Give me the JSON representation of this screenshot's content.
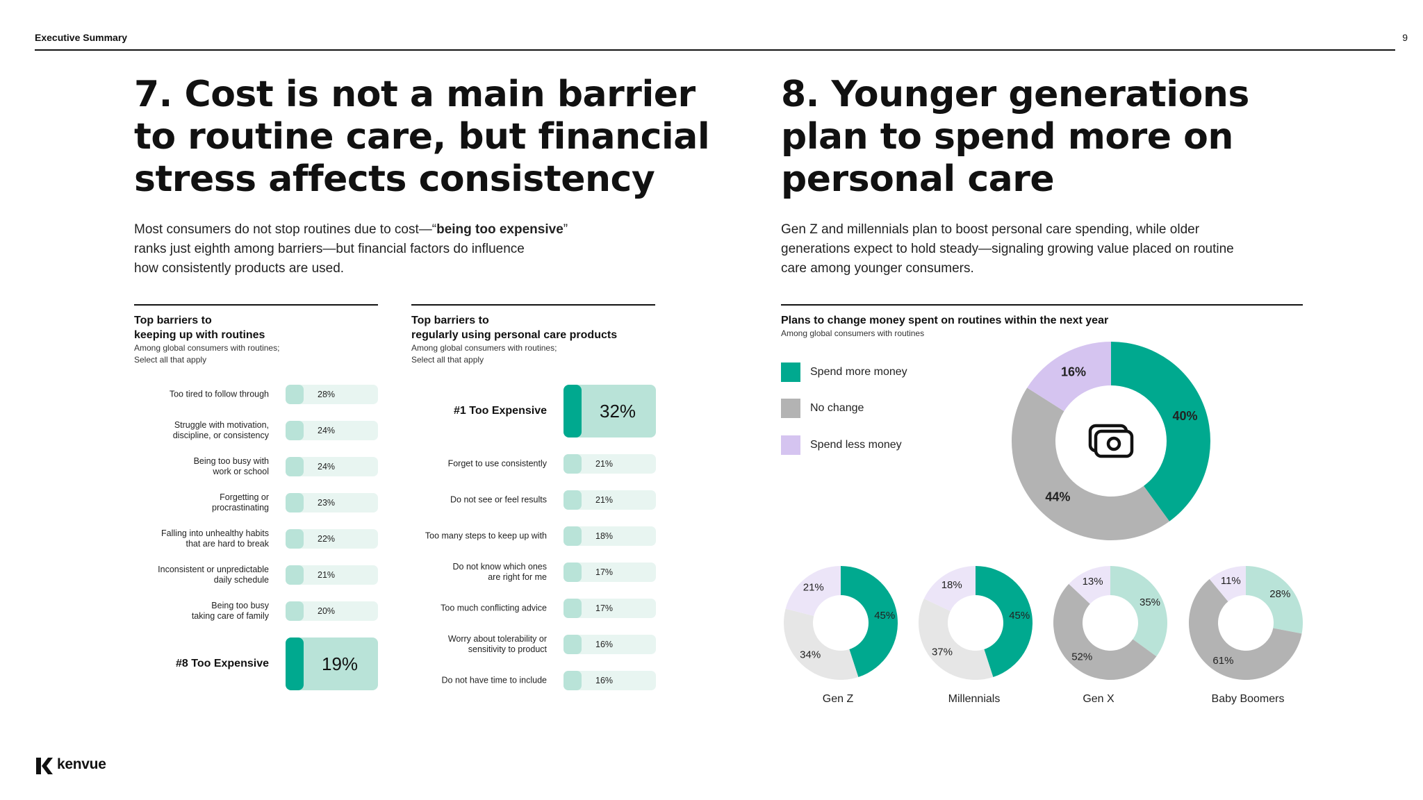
{
  "header": {
    "section": "Executive Summary",
    "page": "9"
  },
  "left": {
    "heading": [
      "7. Cost is not a main barrier",
      "to routine care, but financial",
      "stress affects consistency"
    ],
    "lead": {
      "p1": "Most consumers do not stop routines due to cost—“",
      "bold": "being too expensive",
      "p2": "”",
      "l2": "ranks just eighth among barriers—but financial factors do influence",
      "l3": "how consistently products are used."
    }
  },
  "right": {
    "heading": [
      "8. Younger generations",
      "plan to spend more on",
      "personal care"
    ],
    "lead": [
      "Gen Z and millennials plan to boost personal care spending, while older",
      "generations expect to hold steady—signaling growing value placed on routine",
      "care among younger consumers."
    ]
  },
  "colors": {
    "teal": "#00a98f",
    "gray": "#b3b3b3",
    "lavender": "#d5c4f0",
    "light_teal": "#b9e3d8",
    "light_gray": "#e6e6e6",
    "light_lavender": "#ece5f8"
  },
  "chart_data": [
    {
      "type": "bar",
      "title": "Top barriers to keeping up with routines",
      "subtitle": "Among global consumers with routines; Select all that apply",
      "title_lines": [
        "Top barriers to",
        "keeping up with routines"
      ],
      "subtitle_lines": [
        "Among global consumers with routines;",
        "Select all that apply"
      ],
      "categories": [
        "Too tired to follow through",
        "Struggle with motivation, discipline, or consistency",
        "Being too busy with work or school",
        "Forgetting or procrastinating",
        "Falling into unhealthy habits that are hard to break",
        "Inconsistent or unpredictable daily schedule",
        "Being too busy taking care of family",
        "#8 Too Expensive"
      ],
      "category_lines": [
        [
          "Too tired to follow through"
        ],
        [
          "Struggle with motivation,",
          "discipline, or consistency"
        ],
        [
          "Being too busy with",
          "work or school"
        ],
        [
          "Forgetting or",
          "procrastinating"
        ],
        [
          "Falling into unhealthy habits",
          "that are hard to break"
        ],
        [
          "Inconsistent or unpredictable",
          "daily schedule"
        ],
        [
          "Being too busy",
          "taking care of family"
        ],
        [
          "#8 Too Expensive"
        ]
      ],
      "values": [
        28,
        24,
        24,
        23,
        22,
        21,
        20,
        19
      ],
      "labels": [
        "28%",
        "24%",
        "24%",
        "23%",
        "22%",
        "21%",
        "20%",
        "19%"
      ],
      "highlight_index": 7,
      "unit": "%"
    },
    {
      "type": "bar",
      "title": "Top barriers to regularly using personal care products",
      "subtitle": "Among global consumers with routines; Select all that apply",
      "title_lines": [
        "Top barriers to",
        "regularly using personal care products"
      ],
      "subtitle_lines": [
        "Among global consumers with routines;",
        "Select all that apply"
      ],
      "categories": [
        "#1 Too Expensive",
        "Forget to use consistently",
        "Do not see or feel results",
        "Too many steps to keep up with",
        "Do not know which ones are right for me",
        "Too much conflicting advice",
        "Worry about tolerability or sensitivity to product",
        "Do not have time to include"
      ],
      "category_lines": [
        [
          "#1 Too Expensive"
        ],
        [
          "Forget to use consistently"
        ],
        [
          "Do not see or feel results"
        ],
        [
          "Too many steps to keep up with"
        ],
        [
          "Do not know which ones",
          "are right for me"
        ],
        [
          "Too much conflicting advice"
        ],
        [
          "Worry about tolerability or",
          "sensitivity to product"
        ],
        [
          "Do not have time to include"
        ]
      ],
      "values": [
        32,
        21,
        21,
        18,
        17,
        17,
        16,
        16
      ],
      "labels": [
        "32%",
        "21%",
        "21%",
        "18%",
        "17%",
        "17%",
        "16%",
        "16%"
      ],
      "highlight_index": 0,
      "unit": "%"
    },
    {
      "type": "pie",
      "title": "Plans to change money spent on routines within the next year",
      "subtitle": "Among global consumers with routines",
      "legend": [
        "Spend more money",
        "No change",
        "Spend less money"
      ],
      "legend_position": "left",
      "overall": {
        "values": [
          40,
          44,
          16
        ],
        "labels": [
          "40%",
          "44%",
          "16%"
        ]
      },
      "segments": [
        {
          "name": "Gen Z",
          "values": [
            45,
            34,
            21
          ],
          "labels": [
            "45%",
            "34%",
            "21%"
          ]
        },
        {
          "name": "Millennials",
          "values": [
            45,
            37,
            18
          ],
          "labels": [
            "45%",
            "37%",
            "18%"
          ]
        },
        {
          "name": "Gen X",
          "values": [
            35,
            52,
            13
          ],
          "labels": [
            "35%",
            "52%",
            "13%"
          ]
        },
        {
          "name": "Baby Boomers",
          "values": [
            28,
            61,
            11
          ],
          "labels": [
            "28%",
            "61%",
            "11%"
          ]
        }
      ]
    }
  ],
  "footer": {
    "logo_text": "kenvue"
  }
}
